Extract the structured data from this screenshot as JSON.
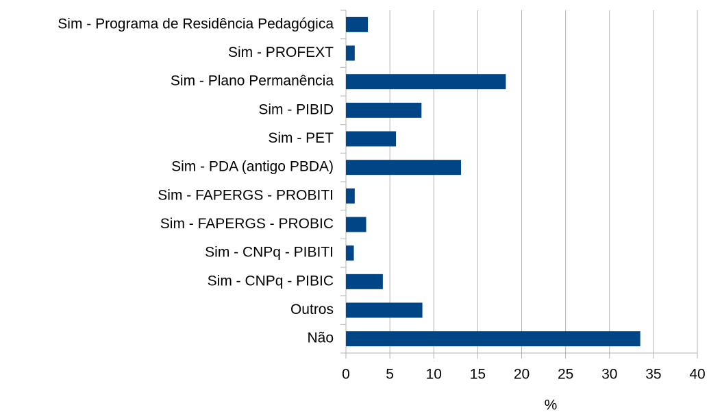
{
  "chart_data": {
    "type": "bar",
    "orientation": "horizontal",
    "x_label": "%",
    "categories": [
      "Sim - Programa de Residência Pedagógica",
      "Sim - PROFEXT",
      "Sim - Plano Permanência",
      "Sim - PIBID",
      "Sim - PET",
      "Sim - PDA (antigo PBDA)",
      "Sim - FAPERGS - PROBITI",
      "Sim - FAPERGS - PROBIC",
      "Sim - CNPq - PIBITI",
      "Sim - CNPq - PIBIC",
      "Outros",
      "Não"
    ],
    "values": [
      2.5,
      1.0,
      18.2,
      8.6,
      5.7,
      13.1,
      1.0,
      2.3,
      0.9,
      4.2,
      8.7,
      33.5
    ],
    "color": "#004586",
    "xlim": [
      0,
      40
    ],
    "xticks": [
      0,
      5,
      10,
      15,
      20,
      25,
      30,
      35,
      40
    ],
    "grid": true
  }
}
